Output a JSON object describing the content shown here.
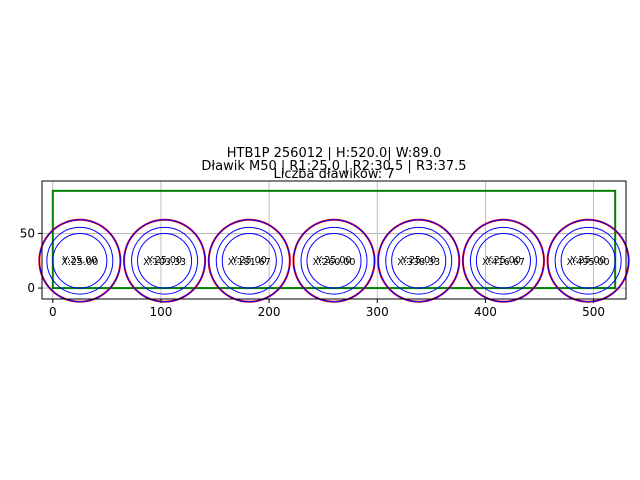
{
  "chart_data": {
    "type": "scatter",
    "title_lines": [
      "HTB1P 256012 | H:520.0| W:89.0",
      "Dławik M50 | R1:25.0 | R2:30.5 | R3:37.5",
      "Liczba dławików: 7"
    ],
    "xlim": [
      -10,
      530
    ],
    "ylim": [
      -10,
      98
    ],
    "x_ticks": [
      0,
      100,
      200,
      300,
      400,
      500
    ],
    "y_ticks": [
      0,
      50
    ],
    "grid": true,
    "plate": {
      "x": 0,
      "y": 0,
      "width": 520.0,
      "height": 89.0,
      "color": "#008000"
    },
    "radii": {
      "r1": 25.0,
      "r2": 30.5,
      "r3": 37.5
    },
    "outer_radius": 37.5,
    "outer_color": "#ff0000",
    "inner_color": "#0000ff",
    "glands": [
      {
        "x": 25.0,
        "y": 25.0,
        "x_label": "X:25.00",
        "y_label": "Y:25.00"
      },
      {
        "x": 103.33,
        "y": 25.0,
        "x_label": "X:103.33",
        "y_label": "Y:25.00"
      },
      {
        "x": 181.67,
        "y": 25.0,
        "x_label": "X:181.67",
        "y_label": "Y:25.00"
      },
      {
        "x": 260.0,
        "y": 25.0,
        "x_label": "X:260.00",
        "y_label": "Y:25.00"
      },
      {
        "x": 338.33,
        "y": 25.0,
        "x_label": "X:338.33",
        "y_label": "Y:25.00"
      },
      {
        "x": 416.67,
        "y": 25.0,
        "x_label": "X:416.67",
        "y_label": "Y:25.00"
      },
      {
        "x": 495.0,
        "y": 25.0,
        "x_label": "X:495.00",
        "y_label": "Y:25.00"
      }
    ]
  }
}
